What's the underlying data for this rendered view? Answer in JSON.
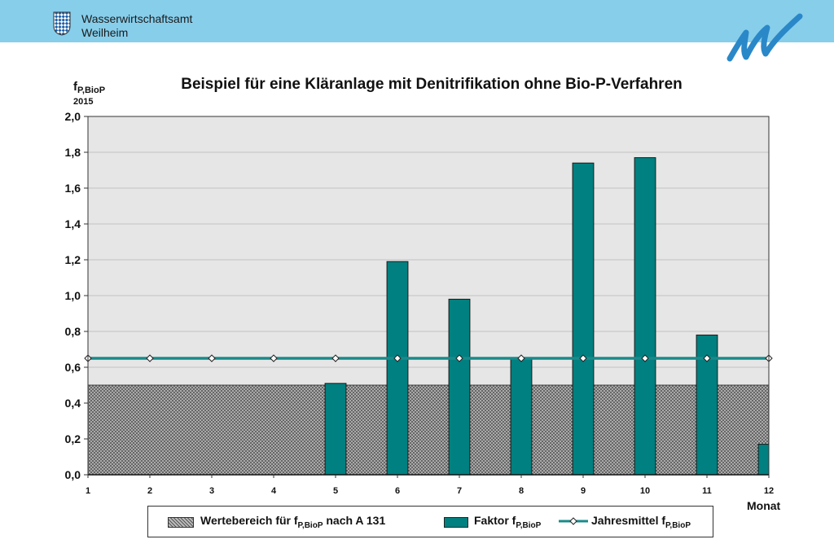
{
  "header": {
    "org_line1": "Wasserwirtschaftsamt",
    "org_line2": "Weilheim",
    "crest_icon": "bavarian-crest-icon",
    "logo_icon": "wwa-wave-logo-icon",
    "background": "#87ceeb"
  },
  "chart_data": {
    "type": "bar",
    "title": "Beispiel für eine Kläranlage mit Denitrifikation ohne Bio-P-Verfahren",
    "ylabel": {
      "base": "f",
      "sub": "P,BioP",
      "clipped_line": "2015"
    },
    "xlabel": "Monat",
    "categories": [
      "1",
      "2",
      "3",
      "4",
      "5",
      "6",
      "7",
      "8",
      "9",
      "10",
      "11",
      "12"
    ],
    "ylim": [
      0,
      2.0
    ],
    "yticks": [
      "0,0",
      "0,2",
      "0,4",
      "0,6",
      "0,8",
      "1,0",
      "1,2",
      "1,4",
      "1,6",
      "1,8",
      "2,0"
    ],
    "grid": true,
    "plot_background": "#e6e6e6",
    "series": [
      {
        "name": "Faktor f",
        "name_sub": "P,BioP",
        "kind": "bar",
        "color": "#008080",
        "values": [
          0,
          0,
          0,
          0,
          0.51,
          1.19,
          0.98,
          0.65,
          1.74,
          1.77,
          0.78,
          0.17
        ]
      },
      {
        "name": "Jahresmittel f",
        "name_sub": "P,BioP",
        "kind": "line",
        "color": "#1a8a8a",
        "values": [
          0.65,
          0.65,
          0.65,
          0.65,
          0.65,
          0.65,
          0.65,
          0.65,
          0.65,
          0.65,
          0.65,
          0.65
        ]
      }
    ],
    "range_band": {
      "name": "Wertebereich für f",
      "name_sub": "P,BioP",
      "name_suffix": " nach A 131",
      "from": 0,
      "to": 0.5,
      "pattern": "crosshatch"
    },
    "legend_position": "bottom"
  }
}
